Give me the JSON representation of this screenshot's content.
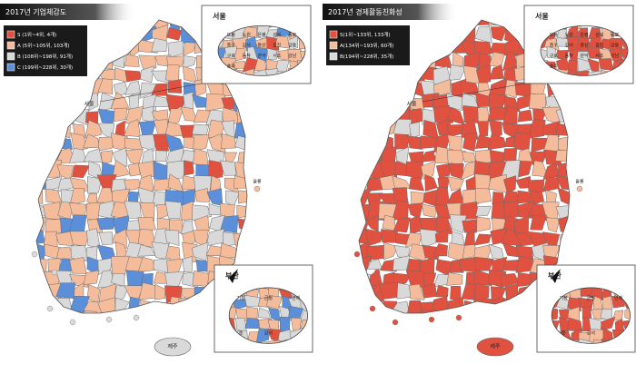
{
  "panels": [
    {
      "title": "2017년 기업체감도",
      "legend": [
        {
          "label": "S (1위~4위, 4개)",
          "color": "#e0513f"
        },
        {
          "label": "A (5위~105위, 103개)",
          "color": "#f5bc9c"
        },
        {
          "label": "B (108위~198위, 91개)",
          "color": "#d9d9d9"
        },
        {
          "label": "C (199위~228위, 30개)",
          "color": "#5b8fd9"
        }
      ],
      "insets": [
        {
          "title": "서울",
          "labels": [
            "도봉",
            "노원",
            "은평",
            "성북",
            "종로",
            "중구",
            "강서",
            "용산",
            "광진",
            "강동",
            "구로",
            "동작",
            "관악",
            "서초",
            "강남",
            "송파"
          ]
        },
        {
          "title": "부산",
          "labels": [
            "기장",
            "금정",
            "연제",
            "중",
            "강서"
          ]
        }
      ],
      "places": [
        "서울",
        "제주",
        "울릉"
      ]
    },
    {
      "title": "2017년 경제활동친화성",
      "legend": [
        {
          "label": "S(1위~133위, 133개)",
          "color": "#e0513f"
        },
        {
          "label": "A(134위~193위, 60개)",
          "color": "#f5bc9c"
        },
        {
          "label": "B(194위~228위, 35개)",
          "color": "#d9d9d9"
        }
      ],
      "insets": [
        {
          "title": "서울",
          "labels": [
            "도봉",
            "노원",
            "은평",
            "성북",
            "종로",
            "중구",
            "강서",
            "용산",
            "광진",
            "강동",
            "구로",
            "동작",
            "관악",
            "서초",
            "강남",
            "송파"
          ]
        },
        {
          "title": "부산",
          "labels": [
            "기장",
            "금정",
            "연제",
            "중",
            "강서"
          ]
        }
      ],
      "places": [
        "서울",
        "제주",
        "울릉"
      ]
    }
  ]
}
